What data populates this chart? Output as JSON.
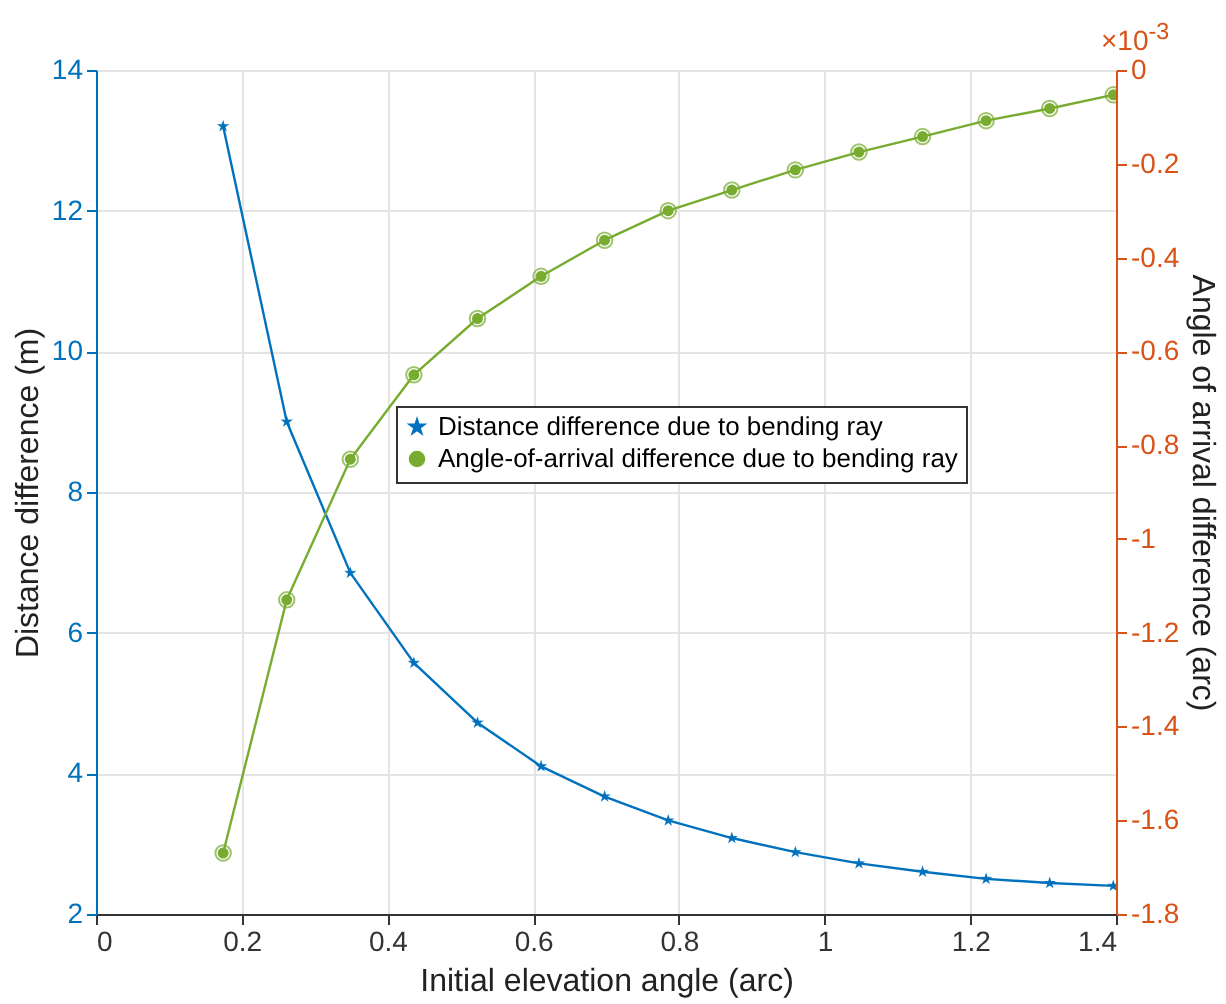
{
  "chart_data": {
    "type": "line",
    "xlabel": "Initial elevation angle (arc)",
    "ylabel": "Distance difference (m)",
    "y2label": "Angle of arrival difference (arc)",
    "annotations": [
      "×10$^{-3}$"
    ],
    "x": [
      0.1745,
      0.2618,
      0.3491,
      0.4363,
      0.5236,
      0.6109,
      0.6981,
      0.7854,
      0.8727,
      0.9599,
      1.0472,
      1.1345,
      1.2217,
      1.309,
      1.3963
    ],
    "series": [
      {
        "name": "Distance difference due to bending ray",
        "color": "#0072bd",
        "marker": "star",
        "values": [
          13.2,
          9.0,
          6.85,
          5.57,
          4.72,
          4.1,
          3.67,
          3.33,
          3.08,
          2.88,
          2.72,
          2.6,
          2.5,
          2.44,
          2.4
        ]
      },
      {
        "name": "Angle-of-arrival difference due to bending ray",
        "color": "#77ac30",
        "marker": "circle",
        "axis": "y2",
        "values": [
          -1.67,
          -1.13,
          -0.83,
          -0.65,
          -0.53,
          -0.44,
          -0.363,
          -0.3,
          -0.256,
          -0.213,
          -0.175,
          -0.142,
          -0.108,
          -0.082,
          -0.053
        ]
      }
    ],
    "xlim": [
      0,
      1.4
    ],
    "xticks": [
      {
        "value": 0,
        "label": "0"
      },
      0.2,
      0.4,
      0.6,
      0.8,
      {
        "value": 1,
        "label": "1"
      },
      1.2,
      1.4
    ],
    "ylim": [
      2,
      14
    ],
    "yticks": [
      2,
      4,
      6,
      8,
      10,
      12,
      14
    ],
    "y2lim": [
      -1.8,
      0
    ],
    "y2ticks": [
      -1.8,
      -1.6,
      -1.4,
      -1.2,
      {
        "value": -1,
        "label": "-1"
      },
      -0.8,
      -0.6,
      -0.4,
      -0.2,
      {
        "value": 0,
        "label": "0"
      }
    ],
    "grid": true,
    "legend": "right",
    "line_style": "solid"
  }
}
